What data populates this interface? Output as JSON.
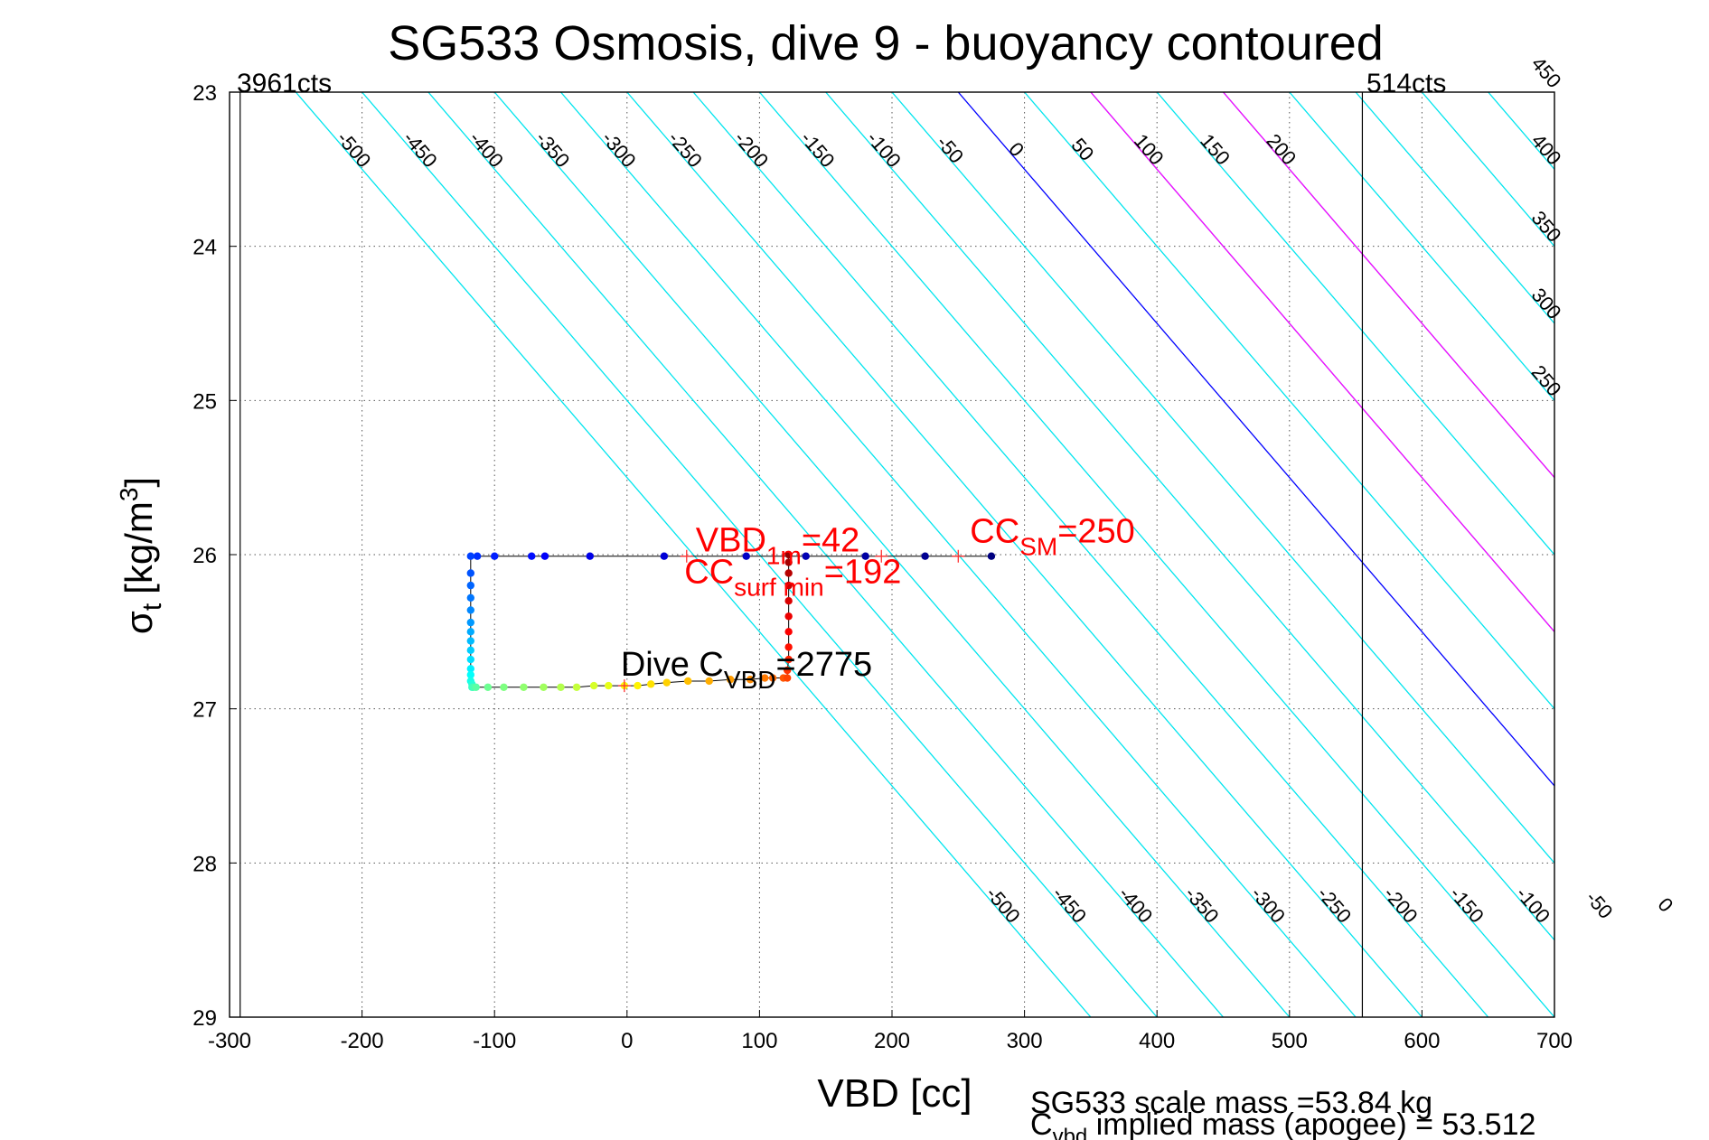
{
  "chart_data": {
    "type": "line",
    "title": "SG533 Osmosis, dive 9 - buoyancy contoured",
    "xlabel": "VBD [cc]",
    "ylabel_symbol": "σ",
    "ylabel_sub": "t",
    "ylabel_unit_pre": "[kg/m",
    "ylabel_unit_sup": "3",
    "ylabel_unit_post": "]",
    "xlim": [
      -300,
      700
    ],
    "ylim": [
      29,
      23
    ],
    "y_reversed": true,
    "grid": true,
    "xticks": [
      -300,
      -200,
      -100,
      0,
      100,
      200,
      300,
      400,
      500,
      600,
      700
    ],
    "yticks": [
      23,
      24,
      25,
      26,
      27,
      28,
      29
    ],
    "corner_labels": {
      "left": "3961cts",
      "right": "514cts"
    },
    "vbd_limits": [
      -292,
      555
    ],
    "buoyancy_contours": {
      "description_units": "g",
      "slope_cc_per_sigma": 100,
      "zero_at": {
        "x": 250,
        "y": 23
      },
      "step": 50,
      "cyan_levels": [
        -500,
        -450,
        -400,
        -350,
        -300,
        -250,
        -200,
        -150,
        -100,
        -50,
        50,
        100,
        150,
        200,
        250,
        300,
        350,
        400,
        450,
        500,
        550,
        600,
        650,
        700,
        750,
        800,
        850,
        900,
        950
      ],
      "blue_levels": [
        0
      ],
      "magenta_levels": [
        100,
        200
      ],
      "colors": {
        "cyan": "#00e5ee",
        "blue": "#0000ff",
        "magenta": "#ff00ff"
      },
      "top_labels": [
        -500,
        -450,
        -400,
        -350,
        -300,
        -250,
        -200,
        -150,
        -100,
        -50,
        0,
        50,
        100,
        150,
        200
      ],
      "bottom_labels": [
        -500,
        -450,
        -400,
        -350,
        -300,
        -250,
        -200,
        -150,
        -100,
        -50,
        0,
        50,
        100,
        150,
        200
      ],
      "right_labels": [
        250,
        300,
        350,
        400,
        450
      ]
    },
    "series": [
      {
        "x": [
          275,
          225,
          180,
          135,
          90,
          28,
          -28,
          -62,
          -72,
          -100,
          -113,
          -118,
          -118,
          -118,
          -118,
          -118,
          -118,
          -118,
          -118,
          -118,
          -118,
          -118,
          -118,
          -118,
          -117,
          -117,
          -116,
          -114,
          -105,
          -93,
          -78,
          -63,
          -50,
          -38,
          -25,
          -14,
          -2,
          8,
          18,
          30,
          46,
          62,
          78,
          93,
          104,
          110,
          118,
          121,
          121,
          122,
          122,
          122,
          122,
          122,
          122,
          122,
          122,
          122
        ],
        "y": [
          26.01,
          26.01,
          26.01,
          26.01,
          26.01,
          26.01,
          26.01,
          26.01,
          26.01,
          26.01,
          26.01,
          26.01,
          26.12,
          26.2,
          26.28,
          26.36,
          26.44,
          26.5,
          26.56,
          26.62,
          26.68,
          26.74,
          26.78,
          26.82,
          26.84,
          26.86,
          26.86,
          26.86,
          26.86,
          26.86,
          26.86,
          26.86,
          26.86,
          26.86,
          26.85,
          26.85,
          26.85,
          26.85,
          26.84,
          26.83,
          26.82,
          26.82,
          26.81,
          26.81,
          26.8,
          26.8,
          26.8,
          26.8,
          26.75,
          26.68,
          26.6,
          26.5,
          26.4,
          26.3,
          26.2,
          26.12,
          26.05,
          26.0
        ],
        "color_scale": "jet"
      }
    ],
    "annotations": [
      {
        "name": "vbd-1m",
        "main": "VBD",
        "sub": "1m",
        "post": "=42",
        "color": "#ff0000",
        "x": 45,
        "y": 26.01
      },
      {
        "name": "cc-sm",
        "main": "CC",
        "sub": "SM",
        "post": "=250",
        "color": "#ff0000",
        "x": 250,
        "y": 26.01
      },
      {
        "name": "cc-surf-min",
        "main": "CC",
        "sub": "surf min",
        "post": "=192",
        "color": "#ff0000",
        "x": 192,
        "y": 26.01
      },
      {
        "name": "dive-cvbd",
        "main": "Dive C",
        "sub": "VBD",
        "post": "=2775",
        "color": "#000000",
        "x": -2,
        "y": 26.85
      }
    ],
    "footer": {
      "line1": "SG533 scale mass =53.84 kg",
      "line2_main": "C",
      "line2_sub": "vbd",
      "line2_post": " implied mass (apogee) = 53.512"
    }
  }
}
